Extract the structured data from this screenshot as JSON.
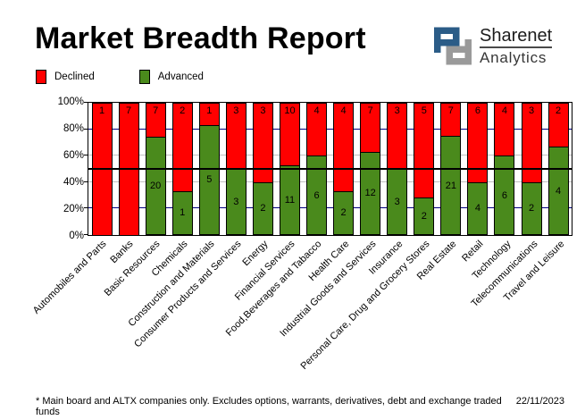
{
  "title": "Market Breadth Report",
  "logo": {
    "brand": "Sharenet",
    "sub": "Analytics",
    "mark_blue": "#2b5c87",
    "mark_gray": "#9a9a9a"
  },
  "legend": [
    {
      "label": "Declined",
      "color": "#ff0000"
    },
    {
      "label": "Advanced",
      "color": "#4a8a1c"
    }
  ],
  "footer": {
    "note": "* Main board and ALTX companies only. Excludes options, warrants, derivatives, debt and exchange traded funds",
    "date": "22/11/2023"
  },
  "chart_data": {
    "type": "bar",
    "stacked": true,
    "percent_stacked": true,
    "title": "Market Breadth Report",
    "xlabel": "",
    "ylabel": "",
    "ylim": [
      0,
      100
    ],
    "yticks": [
      "100%",
      "80%",
      "60%",
      "40%",
      "20%",
      "0%"
    ],
    "categories": [
      "Automobiles and Parts",
      "Banks",
      "Basic Resources",
      "Chemicals",
      "Construction and Materials",
      "Consumer Products and Services",
      "Energy",
      "Financial Services",
      "Food,Beverages and Tabacco",
      "Health Care",
      "Industrial Goods and Services",
      "Insurance",
      "Personal Care, Drug and Grocery Stores",
      "Real Estate",
      "Retail",
      "Technology",
      "Telecommunications",
      "Travel and Leisure"
    ],
    "series": [
      {
        "name": "Declined",
        "color": "#ff0000",
        "values": [
          1,
          7,
          7,
          2,
          1,
          3,
          3,
          10,
          4,
          4,
          7,
          3,
          5,
          7,
          6,
          4,
          3,
          2
        ]
      },
      {
        "name": "Advanced",
        "color": "#4a8a1c",
        "values": [
          0,
          0,
          20,
          1,
          5,
          3,
          2,
          11,
          6,
          2,
          12,
          3,
          2,
          21,
          4,
          6,
          2,
          4
        ]
      }
    ],
    "gridlines": [
      {
        "pct": 80,
        "color": "#000080",
        "tick": true,
        "over": false
      },
      {
        "pct": 60,
        "color": "#c0c0c0",
        "tick": false,
        "over": false
      },
      {
        "pct": 50,
        "color": "#000000",
        "tick": false,
        "over": true
      },
      {
        "pct": 40,
        "color": "#c0c0c0",
        "tick": false,
        "over": false
      },
      {
        "pct": 20,
        "color": "#000080",
        "tick": true,
        "over": false
      }
    ],
    "legend_position": "top-left",
    "grid": true
  }
}
